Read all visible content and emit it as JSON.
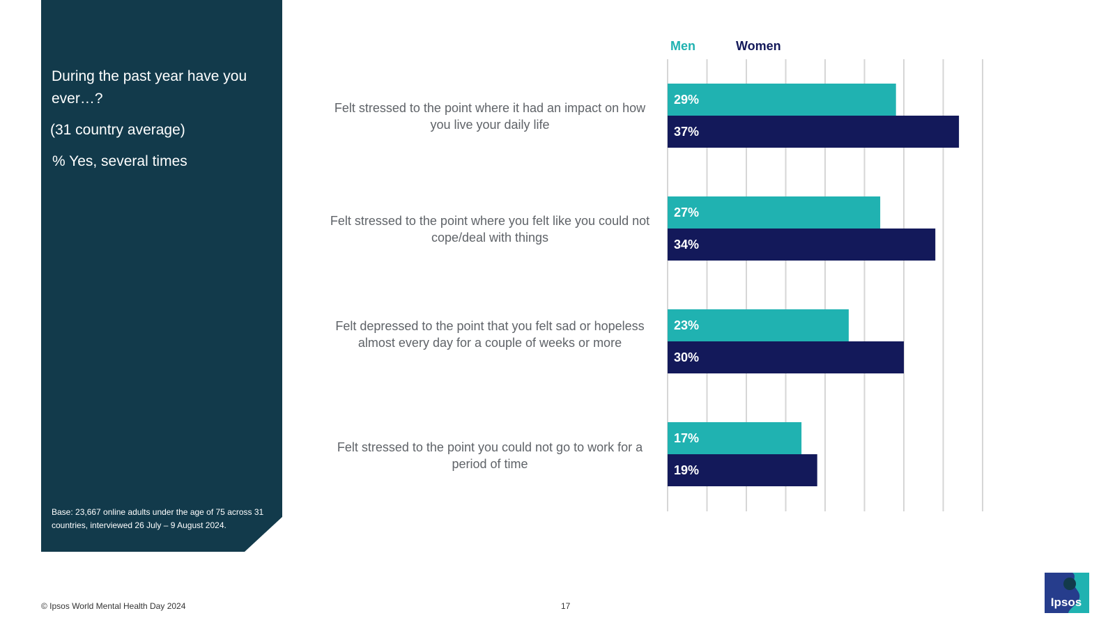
{
  "panel": {
    "question": "During the past year have you ever…?",
    "subtitle": "(31 country average)",
    "measure": "% Yes, several times",
    "base_note": "Base: 23,667 online adults under the age of 75 across 31 countries, interviewed 26 July – 9 August 2024."
  },
  "chart_data": {
    "type": "bar",
    "orientation": "horizontal",
    "title": "During the past year have you ever…? (31 country average) % Yes, several times",
    "categories": [
      "Felt stressed to the point where it had an impact on how you live your daily life",
      "Felt stressed to the point where you felt like you could not cope/deal with things",
      "Felt depressed to the point that you felt sad or hopeless almost every day for a couple of weeks or more",
      "Felt stressed to the point you could not go to work for a period of time"
    ],
    "series": [
      {
        "name": "Men",
        "color": "#20b2b1",
        "values": [
          29,
          27,
          23,
          17
        ],
        "labels": [
          "29%",
          "27%",
          "23%",
          "17%"
        ]
      },
      {
        "name": "Women",
        "color": "#13195a",
        "values": [
          37,
          34,
          30,
          19
        ],
        "labels": [
          "37%",
          "34%",
          "30%",
          "19%"
        ]
      }
    ],
    "xlim": [
      0,
      40
    ],
    "gridlines": true,
    "legend": "top"
  },
  "footer": {
    "copyright": "© Ipsos World Mental Health Day 2024",
    "page_number": "17",
    "logo_text": "Ipsos"
  }
}
